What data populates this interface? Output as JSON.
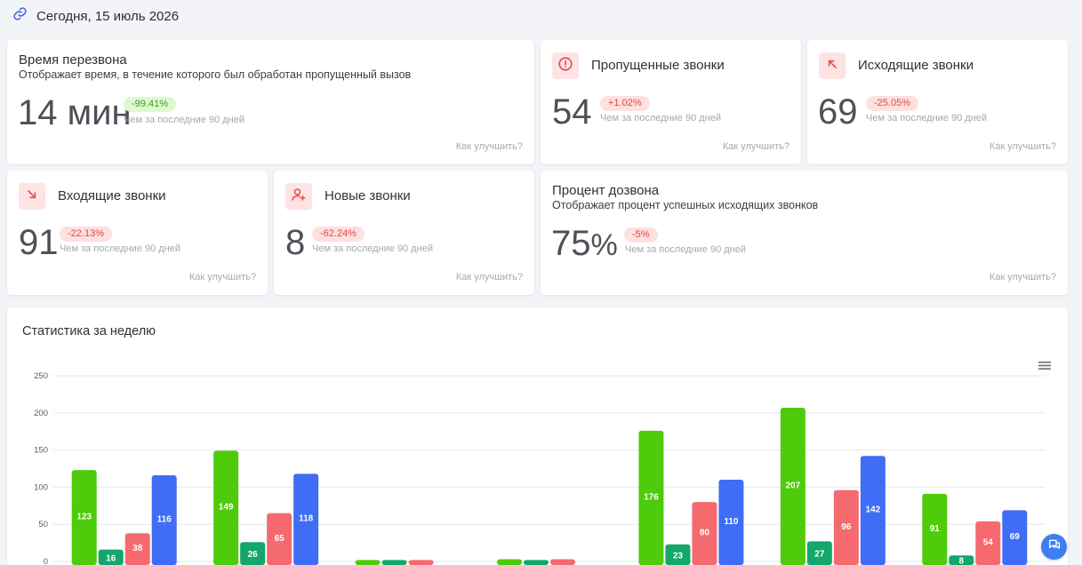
{
  "header": {
    "date_label": "Сегодня, 15 июль 2026",
    "icon": "link-icon"
  },
  "period_note": "Чем за последние 90 дней",
  "help_label": "Как улучшить?",
  "cards": {
    "callback": {
      "title": "Время перезвона",
      "subtitle": "Отображает время, в течение которого был обработан пропущенный вызов",
      "value": "14 мин",
      "change": "-99.41%",
      "change_tone": "positive"
    },
    "missed": {
      "title": "Пропущенные звонки",
      "value": "54",
      "change": "+1.02%",
      "icon": "alert-circle-icon"
    },
    "outgoing": {
      "title": "Исходящие звонки",
      "value": "69",
      "change": "-25.05%",
      "icon": "arrow-up-left-icon"
    },
    "incoming": {
      "title": "Входящие звонки",
      "value": "91",
      "change": "-22.13%",
      "icon": "arrow-down-right-icon"
    },
    "new_calls": {
      "title": "Новые звонки",
      "value": "8",
      "change": "-62.24%",
      "icon": "user-add-icon"
    },
    "answer_rate": {
      "title": "Процент дозвона",
      "subtitle": "Отображает процент успешных исходящих звонков",
      "value": "75",
      "unit": "%",
      "change": "-5%"
    }
  },
  "chart_title": "Статистика за неделю",
  "colors": {
    "green": "#4ecb0b",
    "teal": "#12a76b",
    "red": "#f56a6f",
    "blue": "#3f6df5",
    "accent": "#3d7ff2"
  },
  "chart_data": {
    "type": "bar",
    "ylim": [
      0,
      250
    ],
    "yticks": [
      0,
      50,
      100,
      150,
      200,
      250
    ],
    "groups": 7,
    "series": [
      {
        "color": "#4ecb0b",
        "values": [
          123,
          149,
          2,
          3,
          176,
          207,
          91
        ]
      },
      {
        "color": "#12a76b",
        "values": [
          16,
          26,
          2,
          2,
          23,
          27,
          8
        ]
      },
      {
        "color": "#f56a6f",
        "values": [
          38,
          65,
          2,
          3,
          80,
          96,
          54
        ]
      },
      {
        "color": "#3f6df5",
        "values": [
          116,
          118,
          0,
          0,
          110,
          142,
          69
        ]
      }
    ]
  }
}
